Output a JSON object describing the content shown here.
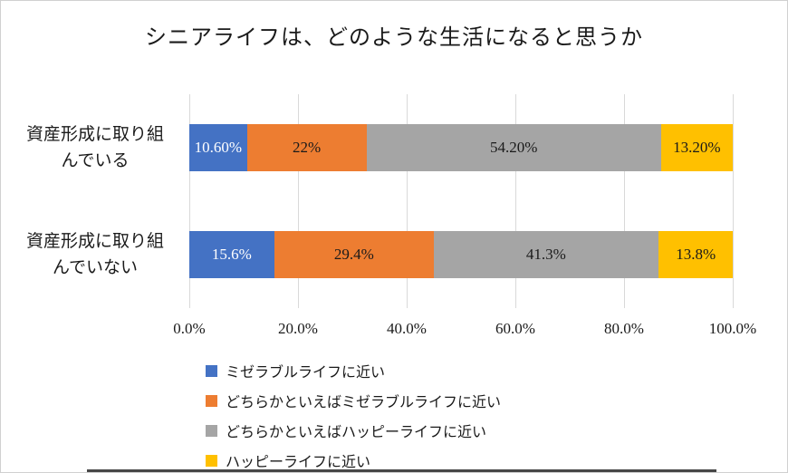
{
  "chart_data": {
    "type": "bar",
    "subtype": "horizontal-stacked",
    "title": "シニアライフは、どのような生活になると思うか",
    "categories": [
      "資産形成に取り組んでいる",
      "資産形成に取り組んでいない"
    ],
    "categories_display": [
      "資産形成に取り組\nんでいる",
      "資産形成に取り組\nんでいない"
    ],
    "series": [
      {
        "name": "ミゼラブルライフに近い",
        "color": "#4472C4",
        "values": [
          10.6,
          15.6
        ],
        "labels": [
          "10.60%",
          "15.6%"
        ],
        "label_color": "#ffffff"
      },
      {
        "name": "どちらかといえばミゼラブルライフに近い",
        "color": "#ED7D31",
        "values": [
          22.0,
          29.4
        ],
        "labels": [
          "22%",
          "29.4%"
        ],
        "label_color": "#1a1a1a"
      },
      {
        "name": "どちらかといえばハッピーライフに近い",
        "color": "#A5A5A5",
        "values": [
          54.2,
          41.3
        ],
        "labels": [
          "54.20%",
          "41.3%"
        ],
        "label_color": "#1a1a1a"
      },
      {
        "name": "ハッピーライフに近い",
        "color": "#FFC000",
        "values": [
          13.2,
          13.8
        ],
        "labels": [
          "13.20%",
          "13.8%"
        ],
        "label_color": "#1a1a1a"
      }
    ],
    "x_ticks": [
      "0.0%",
      "20.0%",
      "40.0%",
      "60.0%",
      "80.0%",
      "100.0%"
    ],
    "xlim": [
      0,
      100
    ],
    "grid": true,
    "legend_position": "bottom-left"
  }
}
